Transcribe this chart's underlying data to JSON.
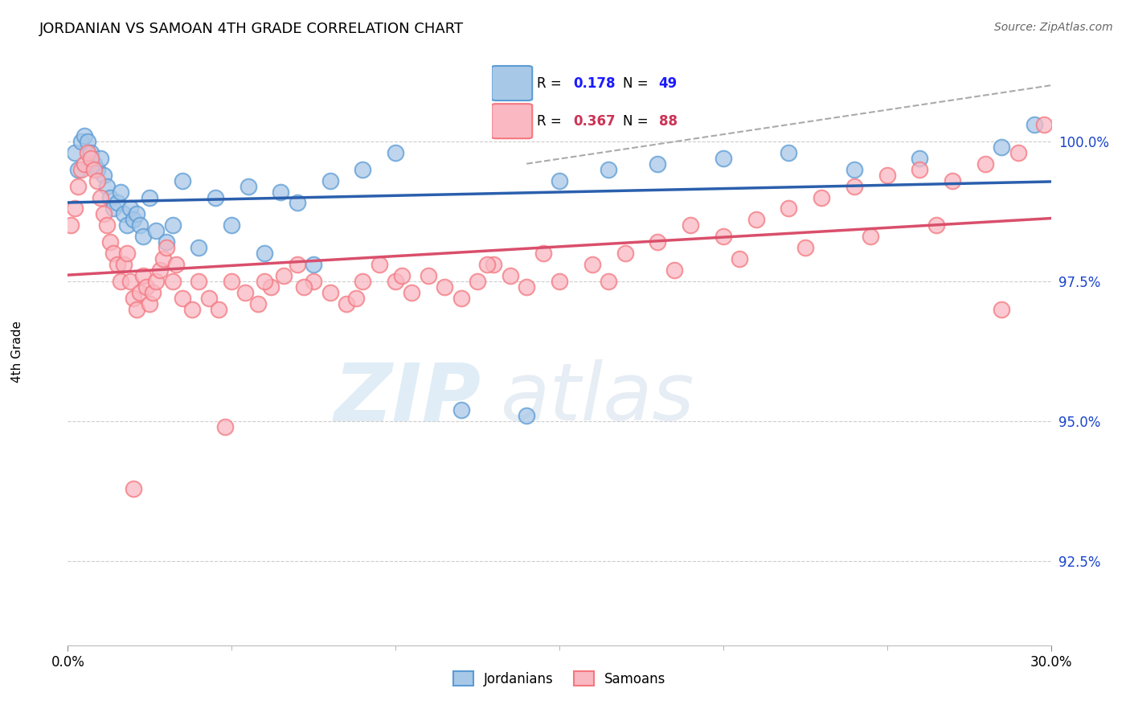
{
  "title": "JORDANIAN VS SAMOAN 4TH GRADE CORRELATION CHART",
  "source": "Source: ZipAtlas.com",
  "ylabel": "4th Grade",
  "ytick_values": [
    92.5,
    95.0,
    97.5,
    100.0
  ],
  "xmin": 0.0,
  "xmax": 30.0,
  "ymin": 91.0,
  "ymax": 101.5,
  "blue_color_face": "#a8c8e8",
  "blue_color_edge": "#5b9bd5",
  "pink_color_face": "#f9b8c2",
  "pink_color_edge": "#f4777f",
  "blue_line_color": "#2b5fad",
  "pink_line_color": "#d94f6b",
  "dash_line_color": "#aaaaaa",
  "blue_r": 0.178,
  "blue_n": 49,
  "pink_r": 0.367,
  "pink_n": 88,
  "blue_r_str": "0.178",
  "blue_n_str": "49",
  "pink_r_str": "0.367",
  "pink_n_str": "88",
  "legend_text_color": "#1a1aff",
  "legend_pink_text_color": "#cc3355",
  "watermark_zip_color": "#c8dff0",
  "watermark_atlas_color": "#c8d8e8"
}
